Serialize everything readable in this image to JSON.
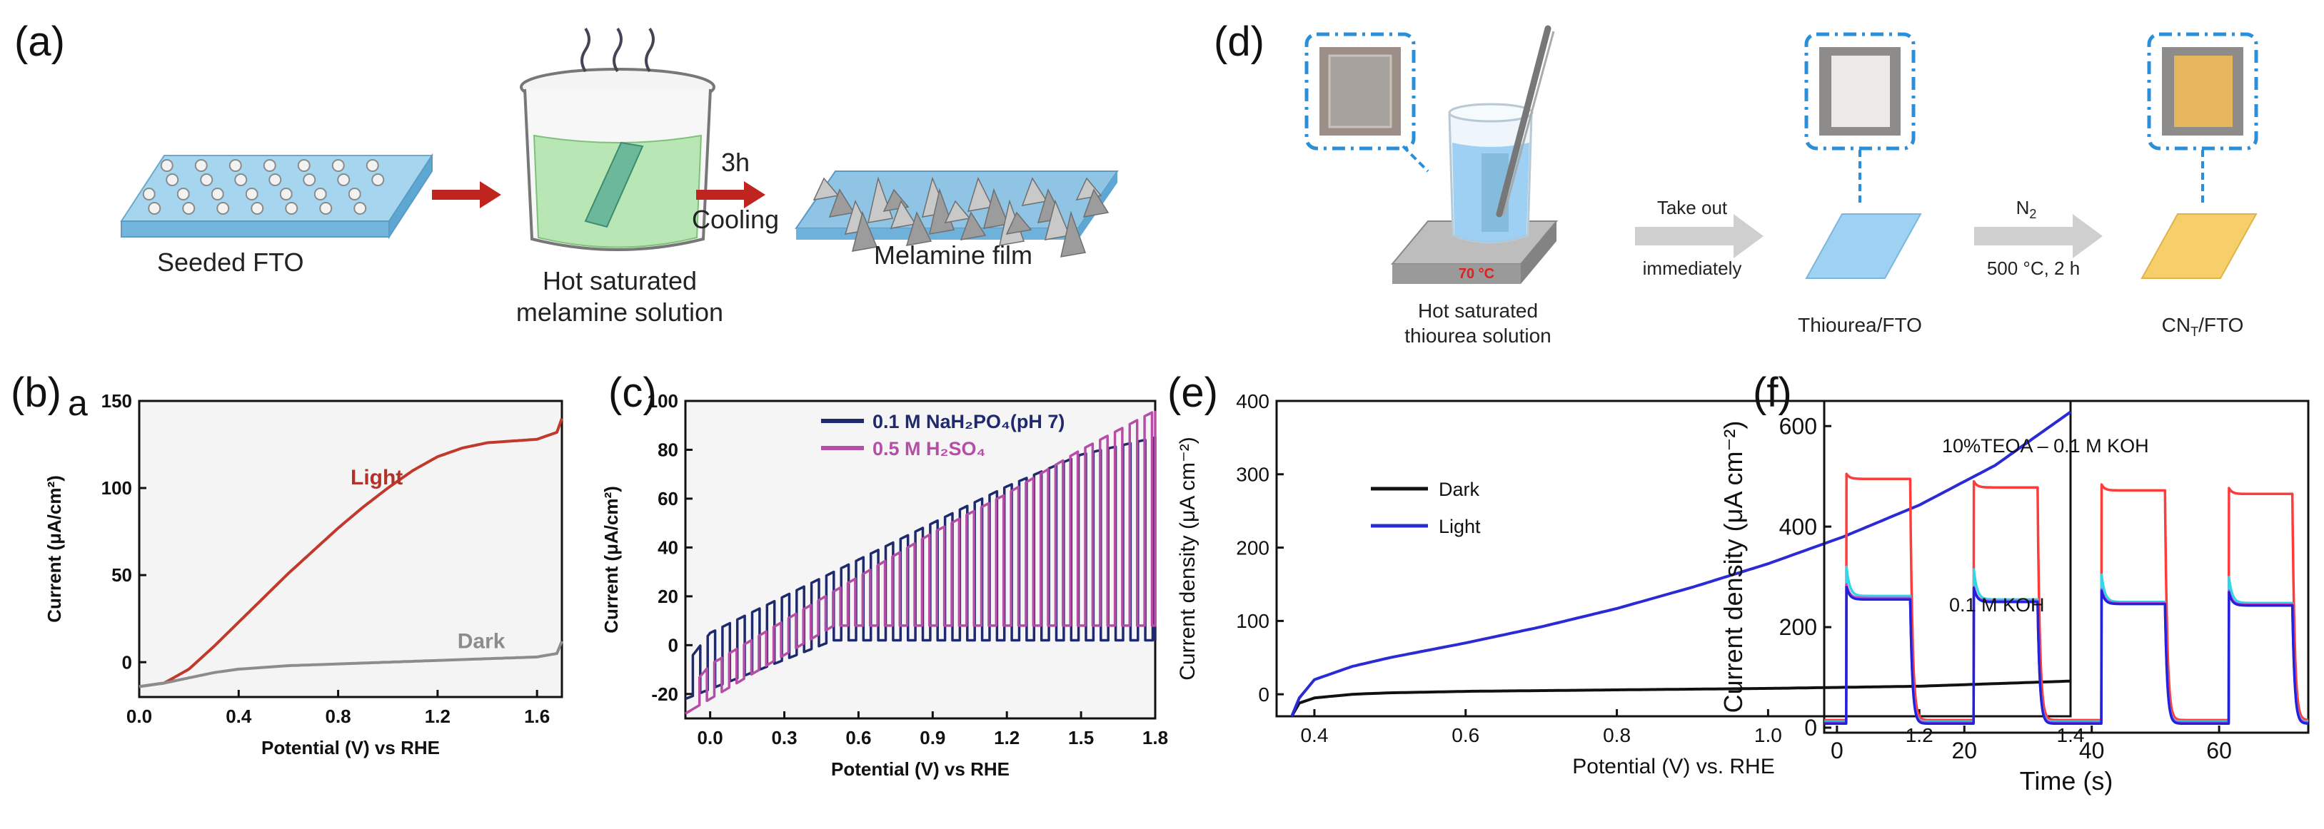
{
  "panels": {
    "a": {
      "label": "(a)",
      "step1": "Seeded FTO",
      "step2_line1": "Hot saturated",
      "step2_line2": "melamine solution",
      "arrow_top": "3h",
      "arrow_bottom": "Cooling",
      "step3": "Melamine film"
    },
    "d": {
      "label": "(d)",
      "hotplate_temp": "70 °C",
      "beaker_line1": "Hot saturated",
      "beaker_line2": "thiourea solution",
      "arrow1_top": "Take out",
      "arrow1_bottom": "immediately",
      "film1": "Thiourea/FTO",
      "arrow2_top": "N",
      "arrow2_top_sub": "2",
      "arrow2_bottom": "500 °C, 2 h",
      "film2": "CN",
      "film2_sub": "T",
      "film2_suffix": "/FTO"
    },
    "b_label": "(b)",
    "b_sublabel": "a",
    "c_label": "(c)",
    "e_label": "(e)",
    "f_label": "(f)"
  },
  "colors": {
    "fto_blue": "#9fd3ee",
    "solution_green": "#b9e6b5",
    "arrow_red": "#c0241f",
    "film_yellow": "#f6cf6a",
    "film_blue": "#9fd2f2",
    "callout_blue": "#2a8fd8"
  },
  "chart_data": [
    {
      "panel": "b",
      "type": "line",
      "xlabel": "Potential (V) vs RHE",
      "ylabel": "Current (μA/cm²)",
      "xlim": [
        0.0,
        1.7
      ],
      "ylim": [
        -20,
        150
      ],
      "xticks": [
        "0.0",
        "0.4",
        "0.8",
        "1.2",
        "1.6"
      ],
      "yticks": [
        "0",
        "50",
        "100",
        "150"
      ],
      "series": [
        {
          "name": "Light",
          "color": "#c0392b",
          "x": [
            0.0,
            0.1,
            0.2,
            0.3,
            0.4,
            0.5,
            0.6,
            0.7,
            0.8,
            0.9,
            1.0,
            1.1,
            1.2,
            1.3,
            1.4,
            1.5,
            1.6,
            1.68,
            1.7
          ],
          "y": [
            -14,
            -12,
            -4,
            9,
            23,
            37,
            51,
            64,
            77,
            89,
            100,
            110,
            118,
            123,
            126,
            127,
            128,
            132,
            140
          ]
        },
        {
          "name": "Dark",
          "color": "#8c8c8c",
          "x": [
            0.0,
            0.1,
            0.2,
            0.3,
            0.4,
            0.6,
            0.8,
            1.0,
            1.2,
            1.4,
            1.6,
            1.68,
            1.7
          ],
          "y": [
            -14,
            -12,
            -9,
            -6,
            -4,
            -2,
            -1,
            0,
            1,
            2,
            3,
            5,
            12
          ]
        }
      ]
    },
    {
      "panel": "c",
      "type": "line",
      "xlabel": "Potential (V) vs RHE",
      "ylabel": "Current (μA/cm²)",
      "xlim": [
        -0.1,
        1.8
      ],
      "ylim": [
        -30,
        100
      ],
      "xticks": [
        "0.0",
        "0.3",
        "0.6",
        "0.9",
        "1.2",
        "1.5",
        "1.8"
      ],
      "yticks": [
        "-20",
        "0",
        "20",
        "40",
        "60",
        "80",
        "100"
      ],
      "legend": "top",
      "series": [
        {
          "name": "0.1 M NaH₂PO₄(pH 7)",
          "color": "#1f2a6e",
          "chop_period": 0.06,
          "dark_start": -22,
          "dark_end": 2,
          "light_x": [
            -0.1,
            0.0,
            0.3,
            0.6,
            0.9,
            1.2,
            1.5,
            1.8
          ],
          "light_y": [
            -8,
            5,
            20,
            35,
            50,
            65,
            78,
            85
          ]
        },
        {
          "name": "0.5 M H₂SO₄",
          "color": "#b64ea8",
          "chop_period": 0.06,
          "dark_start": -28,
          "dark_end": 8,
          "light_x": [
            -0.1,
            0.0,
            0.3,
            0.6,
            0.9,
            1.2,
            1.5,
            1.8
          ],
          "light_y": [
            -20,
            -8,
            10,
            28,
            46,
            62,
            80,
            96
          ]
        }
      ]
    },
    {
      "panel": "e",
      "type": "line",
      "xlabel": "Potential (V) vs. RHE",
      "ylabel": "Current density (μA cm⁻²)",
      "xlim": [
        0.35,
        1.4
      ],
      "ylim": [
        -30,
        400
      ],
      "xticks": [
        "0.4",
        "0.6",
        "0.8",
        "1.0",
        "1.2",
        "1.4"
      ],
      "yticks": [
        "0",
        "100",
        "200",
        "300",
        "400"
      ],
      "legend": "middle-left",
      "series": [
        {
          "name": "Dark",
          "color": "#111111",
          "x": [
            0.37,
            0.38,
            0.4,
            0.45,
            0.5,
            0.6,
            0.8,
            1.0,
            1.2,
            1.4
          ],
          "y": [
            -30,
            -12,
            -5,
            0,
            2,
            4,
            6,
            8,
            11,
            18
          ]
        },
        {
          "name": "Light",
          "color": "#2b2bd6",
          "x": [
            0.37,
            0.38,
            0.4,
            0.45,
            0.5,
            0.6,
            0.7,
            0.8,
            0.9,
            1.0,
            1.1,
            1.2,
            1.3,
            1.4
          ],
          "y": [
            -30,
            -5,
            20,
            38,
            50,
            70,
            92,
            117,
            146,
            178,
            215,
            258,
            312,
            385
          ]
        }
      ]
    },
    {
      "panel": "f",
      "type": "line",
      "xlabel": "Time (s)",
      "ylabel": "Current density (μA cm⁻²)",
      "xlim": [
        -2,
        74
      ],
      "ylim": [
        -10,
        650
      ],
      "xticks": [
        "0",
        "20",
        "40",
        "60"
      ],
      "yticks": [
        "0",
        "200",
        "400",
        "600"
      ],
      "annotations": [
        "10%TEOA – 0.1 M KOH",
        "0.1 M KOH"
      ],
      "on_intervals": [
        [
          1.5,
          11.5
        ],
        [
          21.5,
          31.5
        ],
        [
          41.5,
          51.5
        ],
        [
          61.5,
          71.5
        ]
      ],
      "series": [
        {
          "color": "#ff3b3b",
          "base": 15,
          "peak": [
            505,
            490,
            485,
            478
          ],
          "plateau": [
            495,
            478,
            472,
            465
          ]
        },
        {
          "color": "#33d6e6",
          "base": 12,
          "peak": [
            320,
            315,
            310,
            305
          ],
          "plateau": [
            262,
            255,
            250,
            248
          ]
        },
        {
          "color": "#cc44cc",
          "base": 10,
          "peak": [
            285,
            280,
            278,
            275
          ],
          "plateau": [
            258,
            252,
            248,
            245
          ]
        },
        {
          "color": "#2222dd",
          "base": 8,
          "peak": [
            280,
            278,
            275,
            272
          ],
          "plateau": [
            255,
            250,
            246,
            243
          ]
        }
      ]
    }
  ]
}
